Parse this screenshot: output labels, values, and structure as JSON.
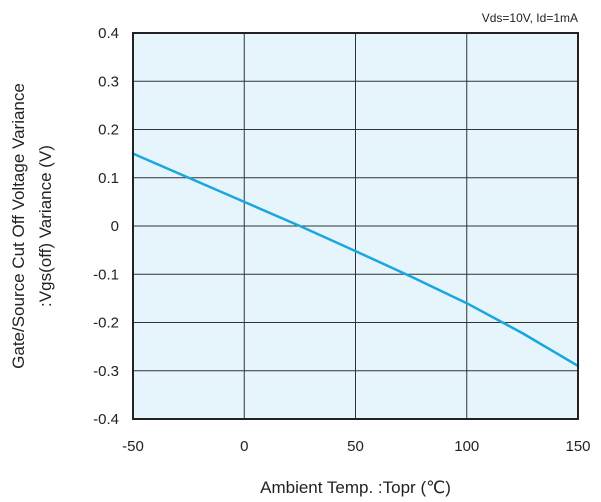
{
  "chart_data": {
    "type": "line",
    "annotation": "Vds=10V, Id=1mA",
    "xlabel": "Ambient Temp. :Topr (℃)",
    "ylabel": [
      "Gate/Source Cut Off Voltage Variance",
      ":Vgs(off) Variance  (V)"
    ],
    "xlim": [
      -50,
      150
    ],
    "ylim": [
      -0.4,
      0.4
    ],
    "x_ticks": [
      -50,
      0,
      50,
      100,
      150
    ],
    "y_ticks": [
      0.4,
      0.3,
      0.2,
      0.1,
      0,
      -0.1,
      -0.2,
      -0.3,
      -0.4
    ],
    "x_tick_labels": [
      "-50",
      "0",
      "50",
      "100",
      "150"
    ],
    "y_tick_labels": [
      "0.4",
      "0.3",
      "0.2",
      "0.1",
      "0",
      "-0.1",
      "-0.2",
      "-0.3",
      "-0.4"
    ],
    "grid": true,
    "plot_background": "#e6f4fb",
    "line_color": "#1aa6df",
    "series": [
      {
        "x": [
          -50,
          -25,
          0,
          25,
          50,
          75,
          100,
          125,
          150
        ],
        "y": [
          0.15,
          0.1,
          0.05,
          0.0,
          -0.052,
          -0.105,
          -0.16,
          -0.222,
          -0.29
        ]
      }
    ]
  }
}
